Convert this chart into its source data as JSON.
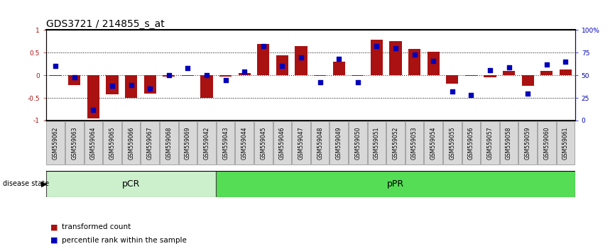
{
  "title": "GDS3721 / 214855_s_at",
  "samples": [
    "GSM559062",
    "GSM559063",
    "GSM559064",
    "GSM559065",
    "GSM559066",
    "GSM559067",
    "GSM559068",
    "GSM559069",
    "GSM559042",
    "GSM559043",
    "GSM559044",
    "GSM559045",
    "GSM559046",
    "GSM559047",
    "GSM559048",
    "GSM559049",
    "GSM559050",
    "GSM559051",
    "GSM559052",
    "GSM559053",
    "GSM559054",
    "GSM559055",
    "GSM559056",
    "GSM559057",
    "GSM559058",
    "GSM559059",
    "GSM559060",
    "GSM559061"
  ],
  "transformed_count": [
    -0.02,
    -0.22,
    -0.95,
    -0.42,
    -0.5,
    -0.4,
    -0.03,
    -0.02,
    -0.5,
    -0.03,
    0.05,
    0.7,
    0.45,
    0.65,
    -0.02,
    0.3,
    -0.02,
    0.78,
    0.76,
    0.58,
    0.52,
    -0.18,
    -0.02,
    -0.05,
    0.09,
    -0.23,
    0.1,
    0.13
  ],
  "percentile_rank": [
    60,
    48,
    12,
    38,
    39,
    35,
    50,
    58,
    50,
    45,
    54,
    82,
    60,
    70,
    42,
    68,
    42,
    82,
    80,
    73,
    66,
    32,
    28,
    56,
    59,
    30,
    62,
    65
  ],
  "pcr_count": 9,
  "group_labels": [
    "pCR",
    "pPR"
  ],
  "bar_color": "#aa1111",
  "dot_color": "#0000bb",
  "background_color": "#ffffff",
  "yticks_left": [
    -1.0,
    -0.5,
    0.0,
    0.5,
    1.0
  ],
  "yticks_right": [
    0,
    25,
    50,
    75,
    100
  ],
  "ylim": [
    -1.0,
    1.0
  ],
  "pcr_color": "#ccf0cc",
  "ppr_color": "#55dd55",
  "title_fontsize": 10,
  "tick_fontsize": 6.5,
  "legend_fontsize": 8
}
